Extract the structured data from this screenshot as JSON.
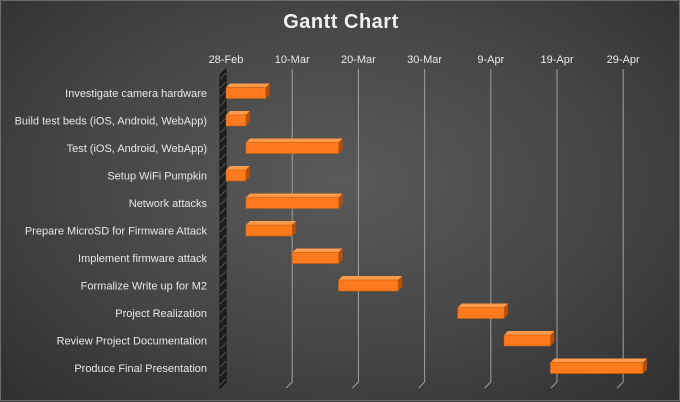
{
  "chart_data": {
    "type": "bar",
    "orientation": "horizontal",
    "title": "Gantt Chart",
    "xlabel": "",
    "ylabel": "",
    "x_ticks": [
      "28-Feb",
      "10-Mar",
      "20-Mar",
      "30-Mar",
      "9-Apr",
      "19-Apr",
      "29-Apr"
    ],
    "x_axis_position": "top",
    "grid": "vertical",
    "legend": "none",
    "tasks": [
      {
        "label": "Investigate camera hardware",
        "start": "28-Feb",
        "end": "6-Mar"
      },
      {
        "label": "Build test beds (iOS, Android, WebApp)",
        "start": "28-Feb",
        "end": "3-Mar"
      },
      {
        "label": "Test (iOS, Android, WebApp)",
        "start": "3-Mar",
        "end": "17-Mar"
      },
      {
        "label": "Setup WiFi Pumpkin",
        "start": "28-Feb",
        "end": "3-Mar"
      },
      {
        "label": "Network attacks",
        "start": "3-Mar",
        "end": "17-Mar"
      },
      {
        "label": "Prepare MicroSD for Firmware Attack",
        "start": "3-Mar",
        "end": "10-Mar"
      },
      {
        "label": "Implement firmware attack",
        "start": "10-Mar",
        "end": "17-Mar"
      },
      {
        "label": "Formalize Write up for M2",
        "start": "17-Mar",
        "end": "26-Mar"
      },
      {
        "label": "Project Realization",
        "start": "4-Apr",
        "end": "11-Apr"
      },
      {
        "label": "Review Project Documentation",
        "start": "11-Apr",
        "end": "18-Apr"
      },
      {
        "label": "Produce Final Presentation",
        "start": "18-Apr",
        "end": "2-May"
      }
    ],
    "colors": {
      "bar": "#ff7a1c",
      "bar_top": "#ff9a4a",
      "bar_side": "#b34f08",
      "grid": "#a0a0a0",
      "text": "#e8e8e8"
    }
  }
}
